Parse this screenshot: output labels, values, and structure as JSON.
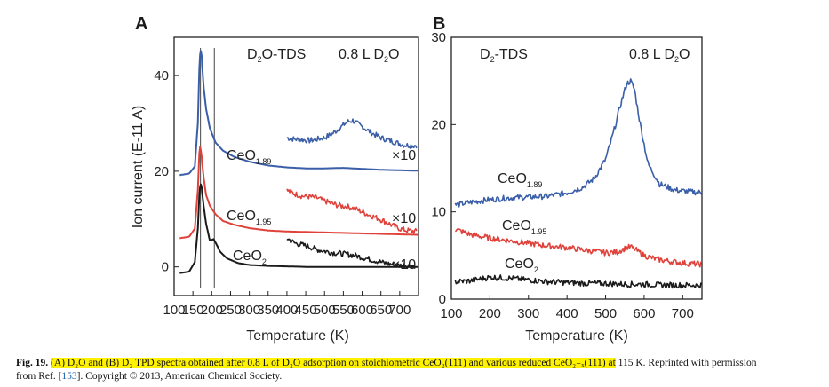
{
  "panels": [
    {
      "label": "A",
      "title_left": "D2O-TDS",
      "title_right": "0.8 L D2O",
      "xlabel": "Temperature (K)",
      "ylabel": "Ion current (E-11 A)"
    },
    {
      "label": "B",
      "title_left": "D2-TDS",
      "title_right": "0.8 L D2O",
      "xlabel": "Temperature (K)",
      "ylabel": ""
    }
  ],
  "chart_data": [
    {
      "type": "line",
      "panel": "A",
      "xlim": [
        100,
        750
      ],
      "ylim": [
        -6,
        48
      ],
      "xticks": [
        100,
        150,
        200,
        250,
        300,
        350,
        400,
        450,
        500,
        550,
        600,
        650,
        700
      ],
      "yticks": [
        0,
        20,
        40
      ],
      "xlabel": "Temperature (K)",
      "ylabel": "Ion current (E-11 A)",
      "vertical_lines": [
        170,
        207
      ],
      "series": [
        {
          "name": "CeO1.89",
          "color": "#3a5ea8",
          "x": [
            115,
            140,
            155,
            163,
            168,
            172,
            178,
            185,
            195,
            210,
            230,
            260,
            300,
            350,
            400,
            450,
            500,
            550,
            600,
            650,
            700,
            750
          ],
          "y": [
            19.2,
            19.5,
            21,
            30,
            44,
            45.5,
            38,
            33,
            29,
            26,
            24.3,
            23,
            22,
            21.2,
            20.8,
            20.6,
            20.6,
            20.7,
            20.5,
            20.3,
            20.2,
            20.1
          ]
        },
        {
          "name": "CeO1.89 ×10",
          "color": "#3a5ea8",
          "x": [
            400,
            420,
            440,
            460,
            480,
            500,
            520,
            540,
            560,
            575,
            590,
            610,
            630,
            650,
            670,
            690,
            710,
            730,
            745
          ],
          "y": [
            27.0,
            26.7,
            26.6,
            26.4,
            26.7,
            27.0,
            27.8,
            29.0,
            30.3,
            30.6,
            29.8,
            28.8,
            27.8,
            27.0,
            26.5,
            26.0,
            25.5,
            25.4,
            25.4
          ]
        },
        {
          "name": "CeO1.95",
          "color": "#e0413a",
          "x": [
            115,
            140,
            155,
            163,
            168,
            172,
            178,
            185,
            195,
            210,
            230,
            260,
            300,
            350,
            400,
            450,
            500,
            550,
            600,
            650,
            700,
            750
          ],
          "y": [
            6.0,
            6.3,
            8,
            16,
            25.5,
            24,
            19,
            15,
            12.8,
            11,
            9.6,
            8.8,
            8.1,
            7.6,
            7.4,
            7.3,
            7.2,
            7.1,
            7.0,
            6.9,
            6.8,
            6.7
          ]
        },
        {
          "name": "CeO1.95 ×10",
          "color": "#e0413a",
          "x": [
            400,
            420,
            440,
            460,
            480,
            500,
            520,
            540,
            560,
            580,
            600,
            620,
            640,
            660,
            680,
            700,
            720,
            745
          ],
          "y": [
            16.0,
            15.3,
            14.8,
            14.7,
            14.4,
            13.8,
            13.2,
            12.8,
            12.6,
            12.2,
            11.5,
            10.8,
            10.2,
            9.5,
            8.7,
            8.0,
            7.6,
            7.4
          ]
        },
        {
          "name": "CeO2",
          "color": "#1a1a1a",
          "x": [
            115,
            140,
            155,
            163,
            168,
            172,
            178,
            185,
            195,
            205,
            212,
            222,
            240,
            270,
            300,
            350,
            400,
            450,
            500,
            550,
            600,
            650,
            700,
            750
          ],
          "y": [
            -1.3,
            -1.0,
            1,
            8,
            16.5,
            17.5,
            13,
            9,
            5.5,
            5.8,
            4.8,
            3.2,
            1.8,
            0.8,
            0.4,
            0.2,
            0.1,
            0,
            0,
            0,
            0,
            0,
            0,
            0
          ]
        },
        {
          "name": "CeO2 ×10",
          "color": "#1a1a1a",
          "x": [
            400,
            420,
            440,
            460,
            480,
            500,
            520,
            540,
            560,
            580,
            600,
            620,
            640,
            660,
            680,
            700,
            720,
            740
          ],
          "y": [
            6.0,
            5.0,
            4.6,
            4.2,
            3.6,
            3.3,
            3.0,
            2.8,
            2.6,
            2.4,
            2.0,
            1.6,
            1.2,
            0.8,
            0.5,
            0.3,
            0.3,
            0.2
          ]
        }
      ],
      "annotations": [
        "CeO1.89",
        "CeO1.95",
        "CeO2",
        "×10",
        "×10",
        "×10"
      ]
    },
    {
      "type": "line",
      "panel": "B",
      "xlim": [
        100,
        750
      ],
      "ylim": [
        0,
        30
      ],
      "xticks": [
        100,
        200,
        300,
        400,
        500,
        600,
        700
      ],
      "yticks": [
        0,
        10,
        20,
        30
      ],
      "xlabel": "Temperature (K)",
      "series": [
        {
          "name": "CeO1.89",
          "color": "#3a5ea8",
          "x": [
            110,
            150,
            200,
            250,
            300,
            350,
            400,
            440,
            470,
            500,
            520,
            540,
            555,
            565,
            575,
            590,
            610,
            640,
            680,
            720,
            750
          ],
          "y": [
            10.8,
            11.1,
            11.4,
            11.6,
            11.7,
            11.8,
            12.2,
            12.8,
            13.8,
            16,
            19,
            22.5,
            24.7,
            25.0,
            24.0,
            20,
            15.5,
            13.2,
            12.5,
            12.3,
            12.2
          ]
        },
        {
          "name": "CeO1.95",
          "color": "#e0413a",
          "x": [
            110,
            150,
            200,
            250,
            300,
            350,
            400,
            450,
            500,
            530,
            550,
            565,
            580,
            600,
            630,
            670,
            710,
            750
          ],
          "y": [
            8.0,
            7.4,
            7.0,
            6.7,
            6.4,
            6.1,
            5.9,
            5.6,
            5.3,
            5.4,
            5.8,
            6.0,
            5.6,
            5.0,
            4.6,
            4.3,
            4.1,
            4.0
          ]
        },
        {
          "name": "CeO2",
          "color": "#1a1a1a",
          "x": [
            110,
            150,
            200,
            250,
            300,
            350,
            400,
            450,
            500,
            550,
            600,
            650,
            700,
            750
          ],
          "y": [
            2.0,
            2.1,
            2.5,
            2.4,
            2.2,
            2.0,
            1.9,
            1.8,
            1.8,
            1.7,
            1.7,
            1.6,
            1.6,
            1.6
          ]
        }
      ],
      "annotations": [
        "CeO1.89",
        "CeO1.95",
        "CeO2"
      ]
    }
  ],
  "caption": {
    "fig_label": "Fig. 19.",
    "highlighted": "(A) D₂O and (B) D₂ TPD spectra obtained after 0.8 L of D₂O adsorption on stoichiometric CeO₂(111) and various reduced CeO₂₋ₓ(111) at",
    "rest_line1": "115 K. Reprinted with permission",
    "from_ref": "from Ref. [",
    "ref_num": "153",
    "after_ref": "]. Copyright © 2013, American Chemical Society."
  }
}
